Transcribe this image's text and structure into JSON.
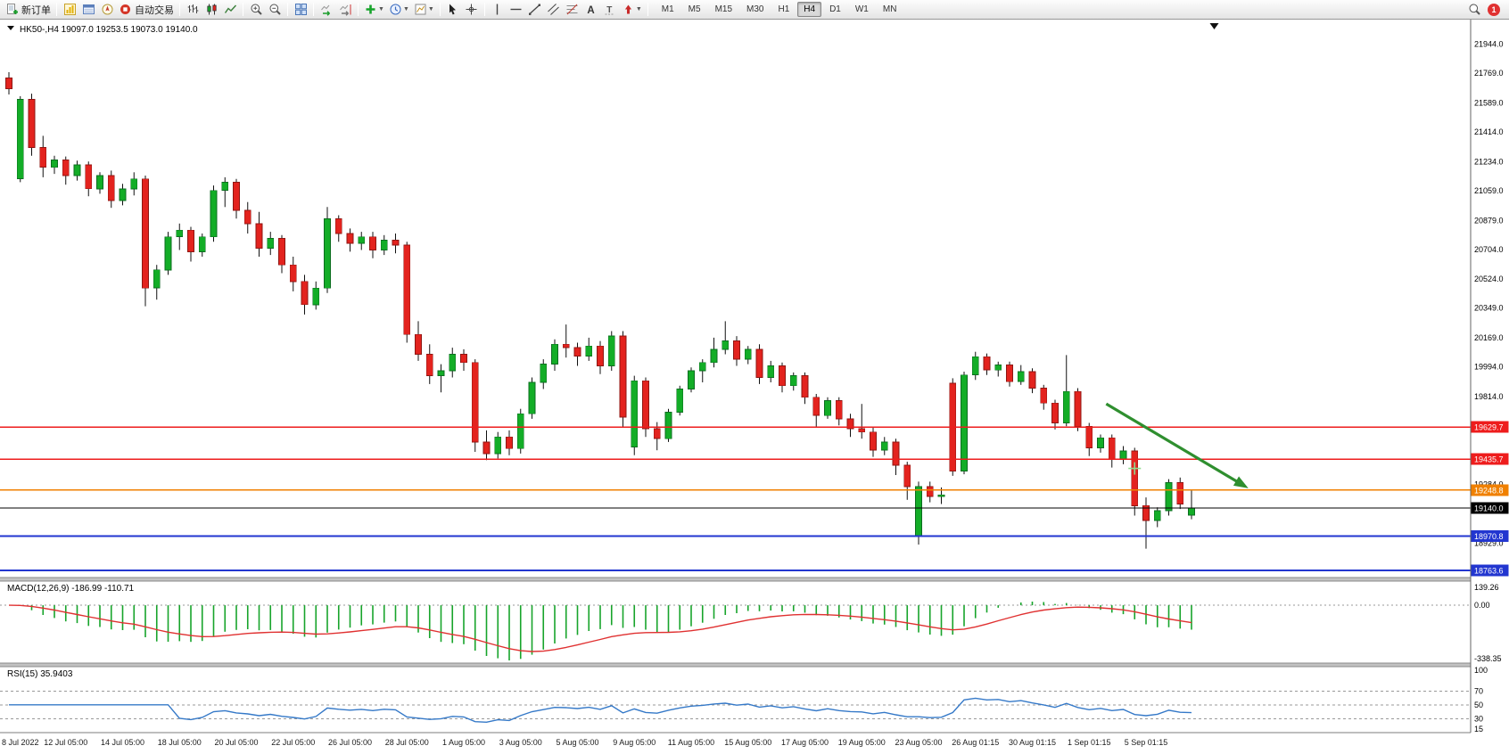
{
  "toolbar": {
    "new_order_label": "新订单",
    "auto_trading_label": "自动交易",
    "timeframes": [
      "M1",
      "M5",
      "M15",
      "M30",
      "H1",
      "H4",
      "D1",
      "W1",
      "MN"
    ],
    "active_timeframe": "H4",
    "notification_count": "1"
  },
  "chart": {
    "symbol_label": "HK50-,H4",
    "header_text": "HK50-,H4  19097.0 19253.5 19073.0 19140.0"
  },
  "indicators": {
    "macd": {
      "label": "MACD(12,26,9)",
      "main_value": "-186.99",
      "signal_value": "-110.71",
      "header_text": "MACD(12,26,9) -186.99 -110.71",
      "axis_labels": [
        "139.26",
        "0.00",
        "-338.35"
      ],
      "histogram_color": "#17a42b",
      "signal_color": "#e03131"
    },
    "rsi": {
      "label": "RSI(15)",
      "value": "35.9403",
      "header_text": "RSI(15) 35.9403",
      "axis_labels": [
        "100",
        "70",
        "50",
        "30",
        "15"
      ],
      "levels": [
        70,
        50,
        30
      ],
      "line_color": "#3579c8"
    }
  },
  "price_axis": {
    "labels": [
      21944.0,
      21769.0,
      21589.0,
      21414.0,
      21234.0,
      21059.0,
      20879.0,
      20704.0,
      20524.0,
      20349.0,
      20169.0,
      19994.0,
      19814.0,
      19284.0,
      18929.0
    ],
    "badges": [
      {
        "text": "19629.7",
        "price": 19629.7,
        "color": "#ee1c1c"
      },
      {
        "text": "19435.7",
        "price": 19435.7,
        "color": "#ee1c1c"
      },
      {
        "text": "19248.8",
        "price": 19248.8,
        "color": "#f08000"
      },
      {
        "text": "19140.0",
        "price": 19140.0,
        "color": "#000000"
      },
      {
        "text": "18970.8",
        "price": 18970.8,
        "color": "#2236d0"
      },
      {
        "text": "18763.6",
        "price": 18763.6,
        "color": "#2236d0"
      }
    ]
  },
  "hlines": [
    {
      "price": 19629.7,
      "color": "#ee1c1c",
      "width": 1.2
    },
    {
      "price": 19435.7,
      "color": "#ee1c1c",
      "width": 1.2
    },
    {
      "price": 19248.8,
      "color": "#f08000",
      "width": 1.6
    },
    {
      "price": 19140.0,
      "color": "#000000",
      "width": 1.2
    },
    {
      "price": 18970.8,
      "color": "#2236d0",
      "width": 2.2
    },
    {
      "price": 18763.6,
      "color": "#2236d0",
      "width": 2.2
    }
  ],
  "chart_data": {
    "type": "candlestick",
    "symbol": "HK50-",
    "timeframe": "H4",
    "current_bar": {
      "open": 19097.0,
      "high": 19253.5,
      "low": 19073.0,
      "close": 19140.0
    },
    "y_axis_visible_range": [
      18720,
      22093
    ],
    "bull_color": "#13ad27",
    "bear_color": "#e3231e",
    "time_labels": [
      "8 Jul 2022",
      "12 Jul 05:00",
      "14 Jul 05:00",
      "18 Jul 05:00",
      "20 Jul 05:00",
      "22 Jul 05:00",
      "26 Jul 05:00",
      "28 Jul 05:00",
      "1 Aug 05:00",
      "3 Aug 05:00",
      "5 Aug 05:00",
      "9 Aug 05:00",
      "11 Aug 05:00",
      "15 Aug 05:00",
      "17 Aug 05:00",
      "19 Aug 05:00",
      "23 Aug 05:00",
      "26 Aug 01:15",
      "30 Aug 01:15",
      "1 Sep 01:15",
      "5 Sep 01:15"
    ],
    "candles": [
      [
        21740,
        21775,
        21640,
        21675
      ],
      [
        21130,
        21630,
        21110,
        21610
      ],
      [
        21610,
        21645,
        21270,
        21320
      ],
      [
        21320,
        21390,
        21140,
        21200
      ],
      [
        21200,
        21270,
        21160,
        21245
      ],
      [
        21245,
        21265,
        21095,
        21150
      ],
      [
        21150,
        21240,
        21120,
        21215
      ],
      [
        21215,
        21235,
        21025,
        21070
      ],
      [
        21070,
        21170,
        21040,
        21150
      ],
      [
        21150,
        21180,
        20955,
        21000
      ],
      [
        21000,
        21100,
        20970,
        21070
      ],
      [
        21070,
        21170,
        21030,
        21130
      ],
      [
        21130,
        21150,
        20360,
        20470
      ],
      [
        20470,
        20610,
        20400,
        20580
      ],
      [
        20580,
        20810,
        20550,
        20780
      ],
      [
        20780,
        20860,
        20700,
        20820
      ],
      [
        20820,
        20840,
        20630,
        20690
      ],
      [
        20690,
        20800,
        20660,
        20780
      ],
      [
        20780,
        21090,
        20750,
        21060
      ],
      [
        21060,
        21140,
        20960,
        21110
      ],
      [
        21110,
        21130,
        20890,
        20940
      ],
      [
        20940,
        20990,
        20800,
        20860
      ],
      [
        20860,
        20930,
        20660,
        20710
      ],
      [
        20710,
        20810,
        20670,
        20770
      ],
      [
        20770,
        20790,
        20560,
        20610
      ],
      [
        20610,
        20660,
        20450,
        20510
      ],
      [
        20510,
        20550,
        20310,
        20370
      ],
      [
        20370,
        20510,
        20340,
        20470
      ],
      [
        20470,
        20960,
        20440,
        20890
      ],
      [
        20890,
        20910,
        20750,
        20800
      ],
      [
        20800,
        20830,
        20690,
        20740
      ],
      [
        20740,
        20810,
        20700,
        20780
      ],
      [
        20780,
        20810,
        20650,
        20700
      ],
      [
        20700,
        20790,
        20670,
        20760
      ],
      [
        20760,
        20800,
        20680,
        20730
      ],
      [
        20730,
        20750,
        20140,
        20190
      ],
      [
        20190,
        20270,
        20030,
        20070
      ],
      [
        20070,
        20130,
        19890,
        19940
      ],
      [
        19940,
        20010,
        19840,
        19970
      ],
      [
        19970,
        20110,
        19930,
        20070
      ],
      [
        20070,
        20100,
        19970,
        20020
      ],
      [
        20020,
        20040,
        19480,
        19540
      ],
      [
        19540,
        19610,
        19430,
        19470
      ],
      [
        19470,
        19600,
        19440,
        19570
      ],
      [
        19570,
        19610,
        19460,
        19500
      ],
      [
        19500,
        19740,
        19470,
        19710
      ],
      [
        19710,
        19930,
        19680,
        19900
      ],
      [
        19900,
        20040,
        19860,
        20010
      ],
      [
        20010,
        20160,
        19970,
        20130
      ],
      [
        20130,
        20250,
        20050,
        20110
      ],
      [
        20110,
        20140,
        20000,
        20060
      ],
      [
        20060,
        20170,
        20030,
        20120
      ],
      [
        20120,
        20150,
        19950,
        20000
      ],
      [
        20000,
        20210,
        19970,
        20180
      ],
      [
        20180,
        20210,
        19630,
        19690
      ],
      [
        19510,
        19940,
        19460,
        19910
      ],
      [
        19910,
        19930,
        19570,
        19620
      ],
      [
        19620,
        19660,
        19490,
        19560
      ],
      [
        19560,
        19740,
        19540,
        19720
      ],
      [
        19720,
        19880,
        19700,
        19860
      ],
      [
        19860,
        19990,
        19840,
        19970
      ],
      [
        19970,
        20040,
        19900,
        20020
      ],
      [
        20020,
        20170,
        19990,
        20100
      ],
      [
        20100,
        20270,
        20070,
        20150
      ],
      [
        20150,
        20180,
        20000,
        20040
      ],
      [
        20040,
        20120,
        20010,
        20100
      ],
      [
        20100,
        20130,
        19890,
        19930
      ],
      [
        19930,
        20030,
        19900,
        20000
      ],
      [
        20000,
        20020,
        19840,
        19880
      ],
      [
        19880,
        19960,
        19850,
        19940
      ],
      [
        19940,
        19960,
        19770,
        19810
      ],
      [
        19810,
        19830,
        19630,
        19700
      ],
      [
        19700,
        19810,
        19680,
        19790
      ],
      [
        19790,
        19810,
        19640,
        19680
      ],
      [
        19680,
        19710,
        19570,
        19620
      ],
      [
        19620,
        19770,
        19560,
        19600
      ],
      [
        19600,
        19630,
        19450,
        19490
      ],
      [
        19490,
        19570,
        19460,
        19540
      ],
      [
        19540,
        19560,
        19340,
        19400
      ],
      [
        19400,
        19420,
        19190,
        19270
      ],
      [
        18970,
        19300,
        18920,
        19270
      ],
      [
        19270,
        19300,
        19175,
        19210
      ],
      [
        19210,
        19265,
        19165,
        19220
      ],
      [
        19895,
        19925,
        19335,
        19365
      ],
      [
        19365,
        19965,
        19345,
        19945
      ],
      [
        19945,
        20085,
        19915,
        20055
      ],
      [
        20055,
        20075,
        19945,
        19975
      ],
      [
        19975,
        20025,
        19935,
        20005
      ],
      [
        20005,
        20025,
        19875,
        19905
      ],
      [
        19905,
        20005,
        19885,
        19965
      ],
      [
        19965,
        19985,
        19835,
        19865
      ],
      [
        19865,
        19885,
        19735,
        19775
      ],
      [
        19775,
        19795,
        19615,
        19655
      ],
      [
        19655,
        20065,
        19635,
        19845
      ],
      [
        19845,
        19865,
        19605,
        19635
      ],
      [
        19635,
        19655,
        19455,
        19505
      ],
      [
        19505,
        19585,
        19475,
        19565
      ],
      [
        19565,
        19585,
        19385,
        19435
      ],
      [
        19435,
        19515,
        19405,
        19485
      ],
      [
        19485,
        19505,
        19095,
        19155
      ],
      [
        19155,
        19205,
        18895,
        19065
      ],
      [
        19065,
        19145,
        19025,
        19125
      ],
      [
        19125,
        19315,
        19095,
        19295
      ],
      [
        19295,
        19325,
        19135,
        19165
      ],
      [
        19097,
        19253.5,
        19073,
        19140
      ]
    ],
    "annotations": {
      "trend_arrow": {
        "from_index": 96.5,
        "from_price": 19770,
        "to_index": 109,
        "to_price": 19260,
        "color": "#2f8f2f"
      },
      "cross_marker": {
        "index": 99,
        "price": 19380,
        "color": "#8fdc8f"
      }
    }
  }
}
